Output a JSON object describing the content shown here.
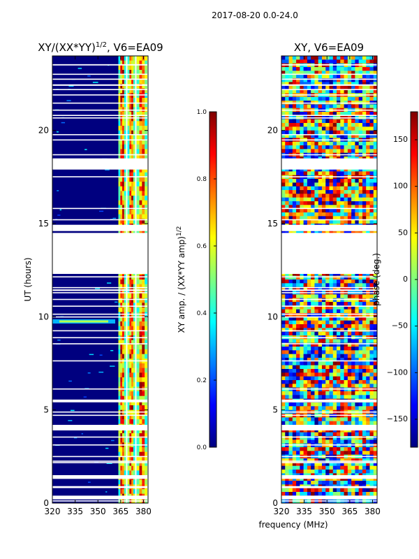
{
  "suptitle": "2017-08-20 0.0-24.0",
  "colormap_stops": [
    "#00007f",
    "#0000ff",
    "#007fff",
    "#00ffff",
    "#7fff7f",
    "#ffff00",
    "#ff7f00",
    "#ff0000",
    "#7f0000"
  ],
  "chart_data": [
    {
      "type": "heatmap",
      "title_main": "XY/(XX*YY)",
      "title_exp": "1/2",
      "title_suffix": ", V6=EA09",
      "xlabel": "",
      "ylabel": "UT (hours)",
      "xlim": [
        320,
        383
      ],
      "ylim": [
        0,
        24
      ],
      "xticks": [
        320,
        335,
        350,
        365,
        380
      ],
      "yticks": [
        0,
        5,
        10,
        15,
        20
      ],
      "channel_edges_mhz": [
        363,
        369,
        375,
        383
      ],
      "data_gaps_hours": [
        [
          12.3,
          14.5
        ],
        [
          17.9,
          18.5
        ],
        [
          14.6,
          14.9
        ],
        [
          3.9,
          4.2
        ],
        [
          1.3,
          1.5
        ],
        [
          0.2,
          0.4
        ]
      ],
      "colorbar": {
        "label_main": "XY amp. / (XX*YY amp)",
        "label_exp": "1/2",
        "range": [
          0.0,
          1.0
        ],
        "ticks": [
          "0.0",
          "0.2",
          "0.4",
          "0.6",
          "0.8",
          "1.0"
        ]
      }
    },
    {
      "type": "heatmap",
      "title": "XY, V6=EA09",
      "xlabel": "frequency (MHz)",
      "ylabel": "",
      "xlim": [
        320,
        383
      ],
      "ylim": [
        0,
        24
      ],
      "xticks": [
        320,
        335,
        350,
        365,
        380
      ],
      "yticks": [
        0,
        5,
        10,
        15,
        20
      ],
      "data_gaps_hours": [
        [
          12.3,
          14.5
        ],
        [
          17.9,
          18.5
        ],
        [
          14.6,
          14.9
        ],
        [
          3.9,
          4.2
        ],
        [
          1.3,
          1.5
        ],
        [
          0.2,
          0.4
        ]
      ],
      "colorbar": {
        "label": "phase (deg.)",
        "range": [
          -180,
          180
        ],
        "ticks": [
          "150",
          "100",
          "50",
          "0",
          "−50",
          "−100",
          "−150"
        ]
      }
    }
  ]
}
